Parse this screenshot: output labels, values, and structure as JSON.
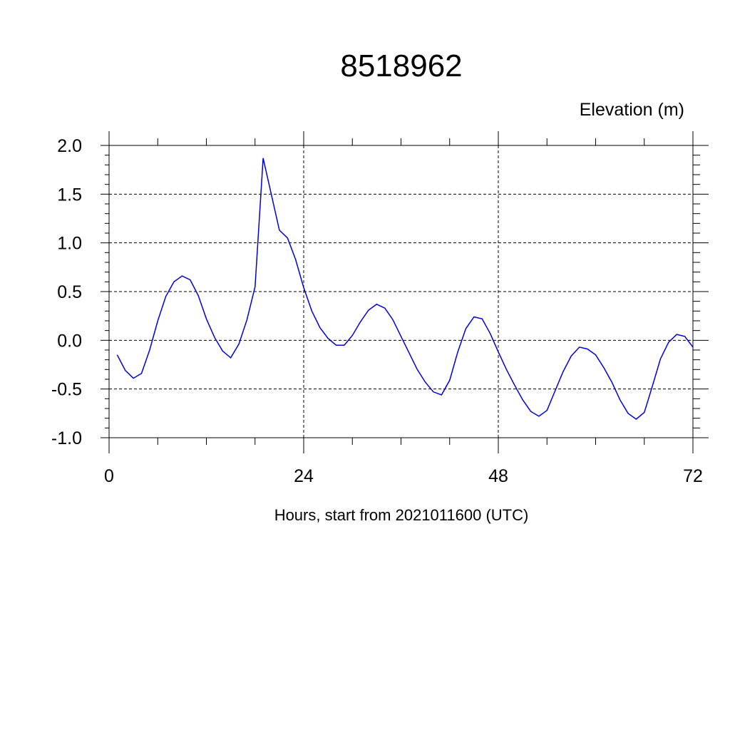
{
  "chart_data": {
    "type": "line",
    "title": "8518962",
    "unit_label": "Elevation (m)",
    "xlabel": "Hours, start from 2021011600 (UTC)",
    "xlim": [
      0,
      72
    ],
    "ylim": [
      -1.0,
      2.0
    ],
    "x_ticks": [
      0,
      24,
      48,
      72
    ],
    "x_tick_labels": [
      "0",
      "24",
      "48",
      "72"
    ],
    "y_ticks": [
      -1.0,
      -0.5,
      0.0,
      0.5,
      1.0,
      1.5,
      2.0
    ],
    "y_tick_labels": [
      "-1.0",
      "-0.5",
      "0.0",
      "0.5",
      "1.0",
      "1.5",
      "2.0"
    ],
    "grid": true,
    "line_color": "#0000dd",
    "series": [
      {
        "x": [
          1,
          2,
          3,
          4,
          5,
          6,
          7,
          8,
          9,
          10,
          11,
          12,
          13,
          14,
          15,
          16,
          17,
          18,
          19,
          20,
          21,
          22,
          23,
          24,
          25,
          26,
          27,
          28,
          29,
          30,
          31,
          32,
          33,
          34,
          35,
          36,
          37,
          38,
          39,
          40,
          41,
          42,
          43,
          44,
          45,
          46,
          47,
          48,
          49,
          50,
          51,
          52,
          53,
          54,
          55,
          56,
          57,
          58,
          59,
          60,
          61,
          62,
          63,
          64,
          65,
          66,
          67,
          68,
          69,
          70,
          71,
          72
        ],
        "y": [
          -0.15,
          -0.31,
          -0.39,
          -0.34,
          -0.1,
          0.2,
          0.45,
          0.6,
          0.66,
          0.62,
          0.46,
          0.22,
          0.03,
          -0.11,
          -0.18,
          -0.04,
          0.21,
          0.55,
          1.87,
          1.5,
          1.13,
          1.05,
          0.83,
          0.54,
          0.3,
          0.13,
          0.02,
          -0.05,
          -0.05,
          0.05,
          0.19,
          0.31,
          0.37,
          0.33,
          0.21,
          0.04,
          -0.13,
          -0.3,
          -0.43,
          -0.53,
          -0.56,
          -0.41,
          -0.12,
          0.12,
          0.24,
          0.22,
          0.07,
          -0.12,
          -0.3,
          -0.46,
          -0.61,
          -0.73,
          -0.78,
          -0.72,
          -0.52,
          -0.32,
          -0.16,
          -0.07,
          -0.09,
          -0.15,
          -0.28,
          -0.43,
          -0.61,
          -0.75,
          -0.81,
          -0.74,
          -0.47,
          -0.19,
          -0.02,
          0.06,
          0.04,
          -0.07
        ]
      }
    ]
  }
}
